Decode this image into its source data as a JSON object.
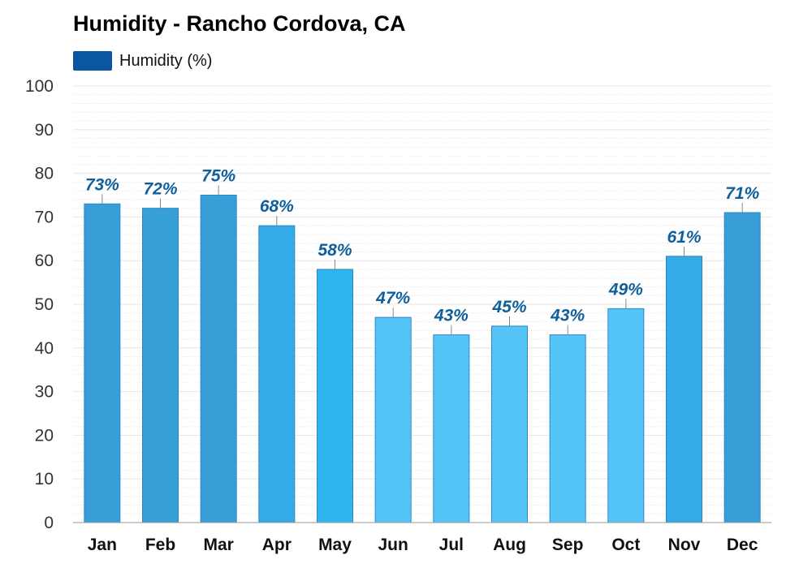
{
  "chart_data": {
    "type": "bar",
    "title": "Humidity - Rancho Cordova, CA",
    "xlabel": "",
    "ylabel": "",
    "categories": [
      "Jan",
      "Feb",
      "Mar",
      "Apr",
      "May",
      "Jun",
      "Jul",
      "Aug",
      "Sep",
      "Oct",
      "Nov",
      "Dec"
    ],
    "series": [
      {
        "name": "Humidity (%)",
        "values": [
          73,
          72,
          75,
          68,
          58,
          47,
          43,
          45,
          43,
          49,
          61,
          71
        ],
        "data_labels": [
          "73%",
          "72%",
          "75%",
          "68%",
          "58%",
          "47%",
          "43%",
          "45%",
          "43%",
          "49%",
          "61%",
          "71%"
        ]
      }
    ],
    "ylim": [
      0,
      100
    ],
    "yticks": [
      0,
      10,
      20,
      30,
      40,
      50,
      60,
      70,
      80,
      90,
      100
    ],
    "ytick_labels": [
      "0",
      "10",
      "20",
      "30",
      "40",
      "50",
      "60",
      "70",
      "80",
      "90",
      "100"
    ],
    "grid": true,
    "legend_position": "top-left",
    "colors": {
      "legend": "#0a57a0",
      "data_label": "#0f5f9c",
      "bar_outline": "#2b86c6",
      "tick_label": "#333333",
      "category_label": "#111111",
      "axis": "#999999",
      "grid": "#e6e6e6"
    },
    "bar_colors": [
      "#389ed8",
      "#389ed8",
      "#389ed8",
      "#34aae6",
      "#2fb6f0",
      "#55c5f8",
      "#55c5f8",
      "#55c5f8",
      "#55c5f8",
      "#55c5f8",
      "#34aae6",
      "#389ed8"
    ]
  }
}
